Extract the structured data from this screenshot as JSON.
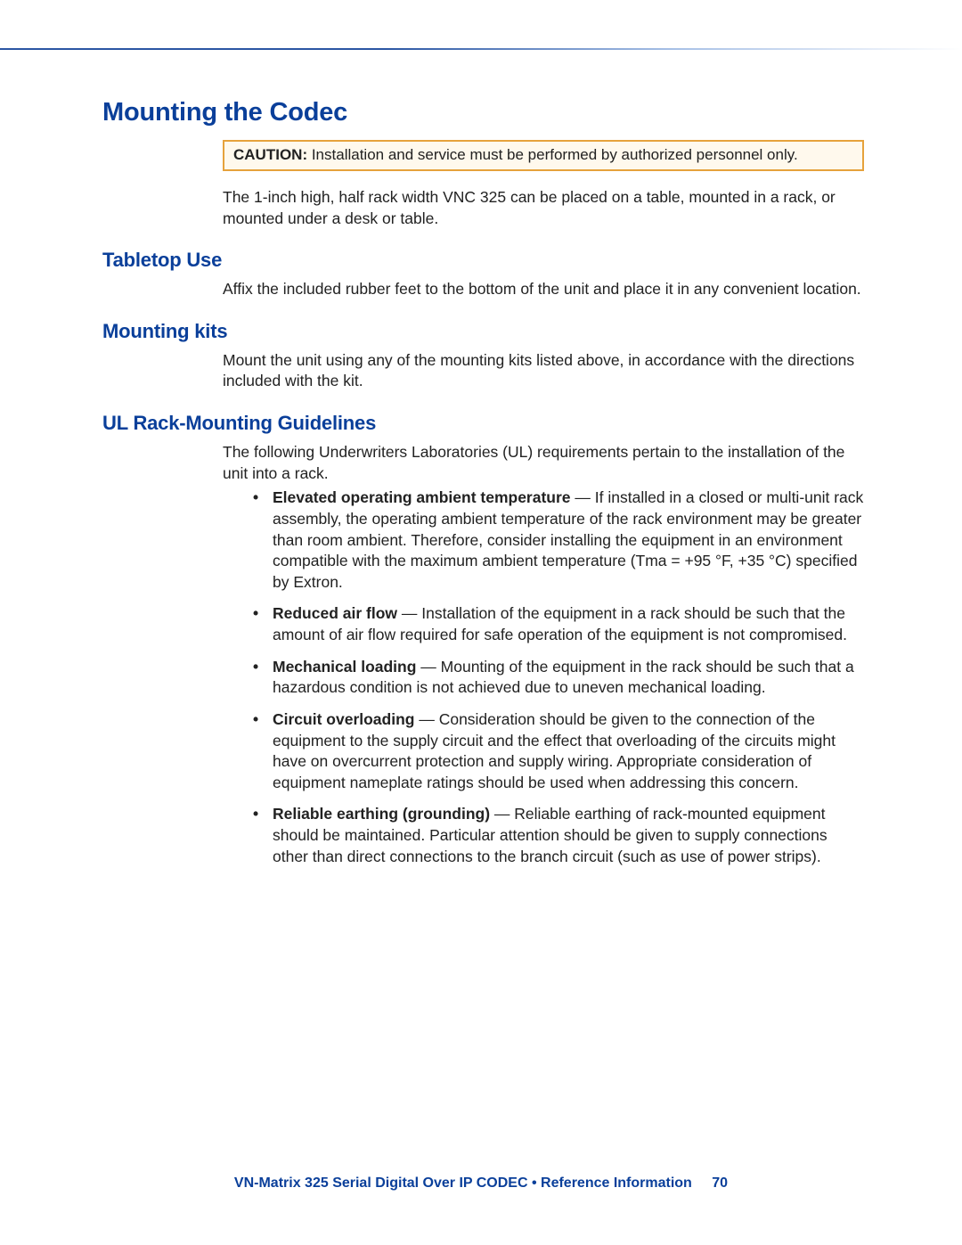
{
  "h1": "Mounting the Codec",
  "caution": {
    "label": "CAUTION:",
    "text": "  Installation and service must be performed by authorized personnel only."
  },
  "intro": "The 1-inch high, half rack width VNC 325 can be placed on a table, mounted in a rack, or mounted under a desk or table.",
  "sections": {
    "tabletop": {
      "heading": "Tabletop Use",
      "body": "Affix the included rubber feet to the bottom of the unit and place it in any convenient location."
    },
    "kits": {
      "heading": "Mounting kits",
      "body": "Mount the unit using any of the mounting kits listed above, in accordance with the directions included with the kit."
    },
    "ul": {
      "heading": "UL Rack-Mounting Guidelines",
      "intro": "The following Underwriters Laboratories (UL) requirements pertain to the installation of the unit into a rack.",
      "items": [
        {
          "lead": "Elevated operating ambient temperature",
          "rest": " — If installed in a closed or multi-unit rack assembly, the operating ambient temperature of the rack environment may be greater than room ambient. Therefore, consider installing the equipment in an environment compatible with the maximum ambient temperature (Tma = +95 °F, +35 °C) specified by Extron."
        },
        {
          "lead": "Reduced air flow",
          "rest": " — Installation of the equipment in a rack should be such that the amount of air flow required for safe operation of the equipment is not compromised."
        },
        {
          "lead": "Mechanical loading",
          "rest": " — Mounting of the equipment in the rack should be such that a hazardous condition is not achieved due to uneven mechanical loading."
        },
        {
          "lead": "Circuit overloading",
          "rest": " — Consideration should be given to the connection of the equipment to the supply circuit and the effect that overloading of the circuits might have on overcurrent protection and supply wiring. Appropriate consideration of equipment nameplate ratings should be used when addressing this concern."
        },
        {
          "lead": "Reliable earthing (grounding)",
          "rest": " — Reliable earthing of rack-mounted equipment should be maintained. Particular attention should be given to supply connections other than direct connections to the branch circuit (such as use of power strips)."
        }
      ]
    }
  },
  "footer": {
    "text": "VN-Matrix 325 Serial Digital Over IP CODEC • Reference Information",
    "page": "70"
  }
}
